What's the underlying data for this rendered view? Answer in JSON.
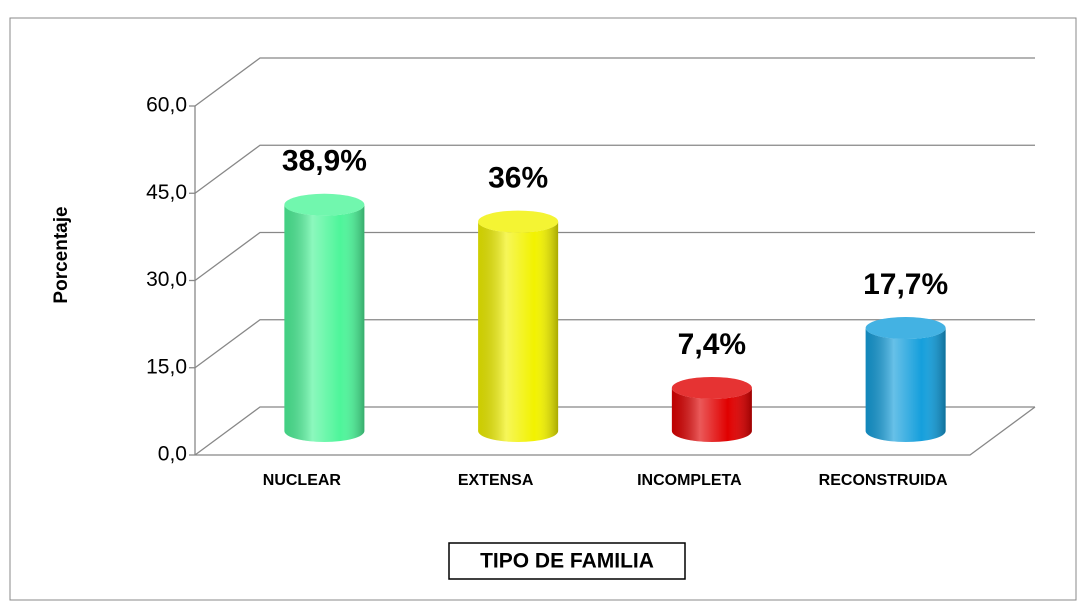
{
  "chart_data": {
    "type": "bar3d",
    "y_label": "Porcentaje",
    "x_label": "TIPO DE FAMILIA",
    "categories": [
      "NUCLEAR",
      "EXTENSA",
      "INCOMPLETA",
      "RECONSTRUIDA"
    ],
    "values": [
      38.9,
      36,
      7.4,
      17.7
    ],
    "value_labels": [
      "38,9%",
      "36%",
      "7,4%",
      "17,7%"
    ],
    "colors": [
      "#4ef59a",
      "#f2f200",
      "#e00000",
      "#159fdc"
    ],
    "ylim": [
      0,
      60
    ],
    "yticks": [
      {
        "value": 0,
        "label": "0,0"
      },
      {
        "value": 15,
        "label": "15,0"
      },
      {
        "value": 30,
        "label": "30,0"
      },
      {
        "value": 45,
        "label": "45,0"
      },
      {
        "value": 60,
        "label": "60,0"
      }
    ],
    "grid": true
  }
}
